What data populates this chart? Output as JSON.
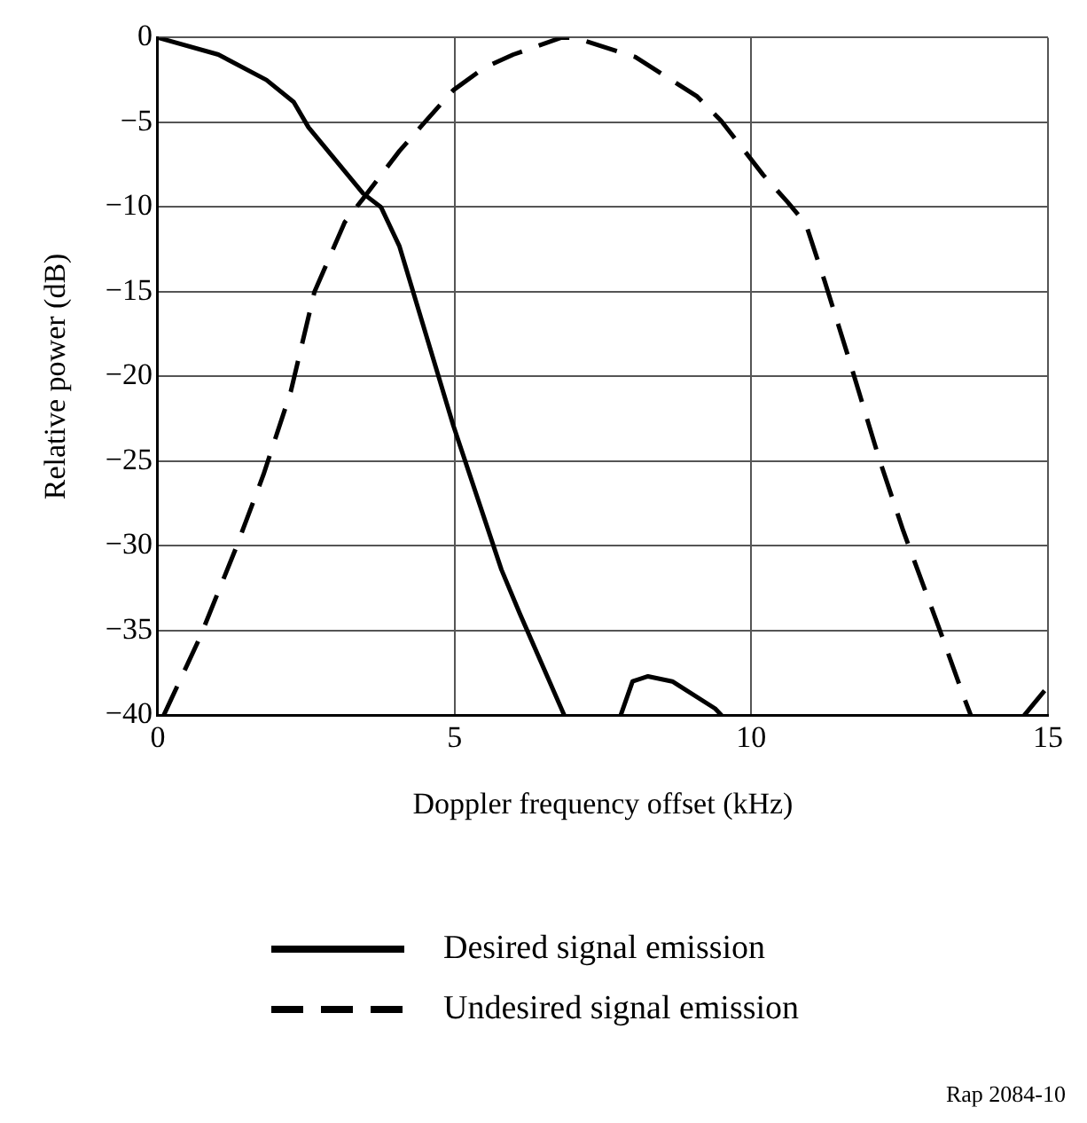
{
  "chart_data": {
    "type": "line",
    "xlabel": "Doppler frequency offset (kHz)",
    "ylabel": "Relative power (dB)",
    "xlim": [
      0,
      15
    ],
    "xticks": [
      0,
      5,
      10,
      15
    ],
    "ylim": [
      -40,
      0
    ],
    "yticks": [
      0,
      {
        "value": -5,
        "label": "−5"
      },
      {
        "value": -10,
        "label": "−10"
      },
      {
        "value": -15,
        "label": "−15"
      },
      {
        "value": -20,
        "label": "−20"
      },
      {
        "value": -25,
        "label": "−25"
      },
      {
        "value": -30,
        "label": "−30"
      },
      {
        "value": -35,
        "label": "−35"
      },
      {
        "value": -40,
        "label": "−40"
      }
    ],
    "grid": true,
    "legend": "bottom",
    "marker": "none",
    "series": [
      {
        "name": "Desired signal emission",
        "color": "#000000",
        "line_style": "solid",
        "x": [
          0,
          1.02,
          1.83,
          2.29,
          2.54,
          3.46,
          3.76,
          4.07,
          4.98,
          5.79,
          6.1,
          6.85,
          7.3,
          7.8,
          8.0,
          8.26,
          8.67,
          9.39,
          9.5
        ],
        "values": [
          0,
          -1,
          -2.5,
          -3.8,
          -5.3,
          -9.2,
          -10,
          -12.3,
          -22.9,
          -31.4,
          -34,
          -40,
          null,
          -40,
          -38,
          -37.7,
          -38,
          -39.6,
          -40
        ]
      },
      {
        "name": "Undesired signal emission",
        "color": "#000000",
        "line_style": "dashed",
        "x": [
          0.1,
          0.71,
          1.32,
          1.78,
          2.24,
          2.64,
          3.15,
          3.46,
          4.07,
          4.47,
          4.98,
          5.49,
          5.99,
          6.8,
          7.03,
          8.05,
          9.08,
          9.49,
          10.2,
          10.61,
          10.92,
          11.23,
          11.64,
          12.15,
          12.56,
          13.18,
          13.59,
          13.7,
          14.2,
          14.6,
          15
        ],
        "values": [
          -40,
          -35.4,
          -30.1,
          -25.8,
          -20.9,
          -15,
          -10.9,
          -9.5,
          -6.7,
          -5.1,
          -3.1,
          -1.8,
          -1,
          0,
          0,
          -1.15,
          -3.45,
          -4.9,
          -8.1,
          -9.7,
          -11,
          -14.3,
          -18.9,
          -24.8,
          -29.1,
          -35,
          -39,
          -40,
          null,
          -40,
          -38.3
        ]
      }
    ],
    "annotations": [
      "Rap 2084-10"
    ]
  }
}
